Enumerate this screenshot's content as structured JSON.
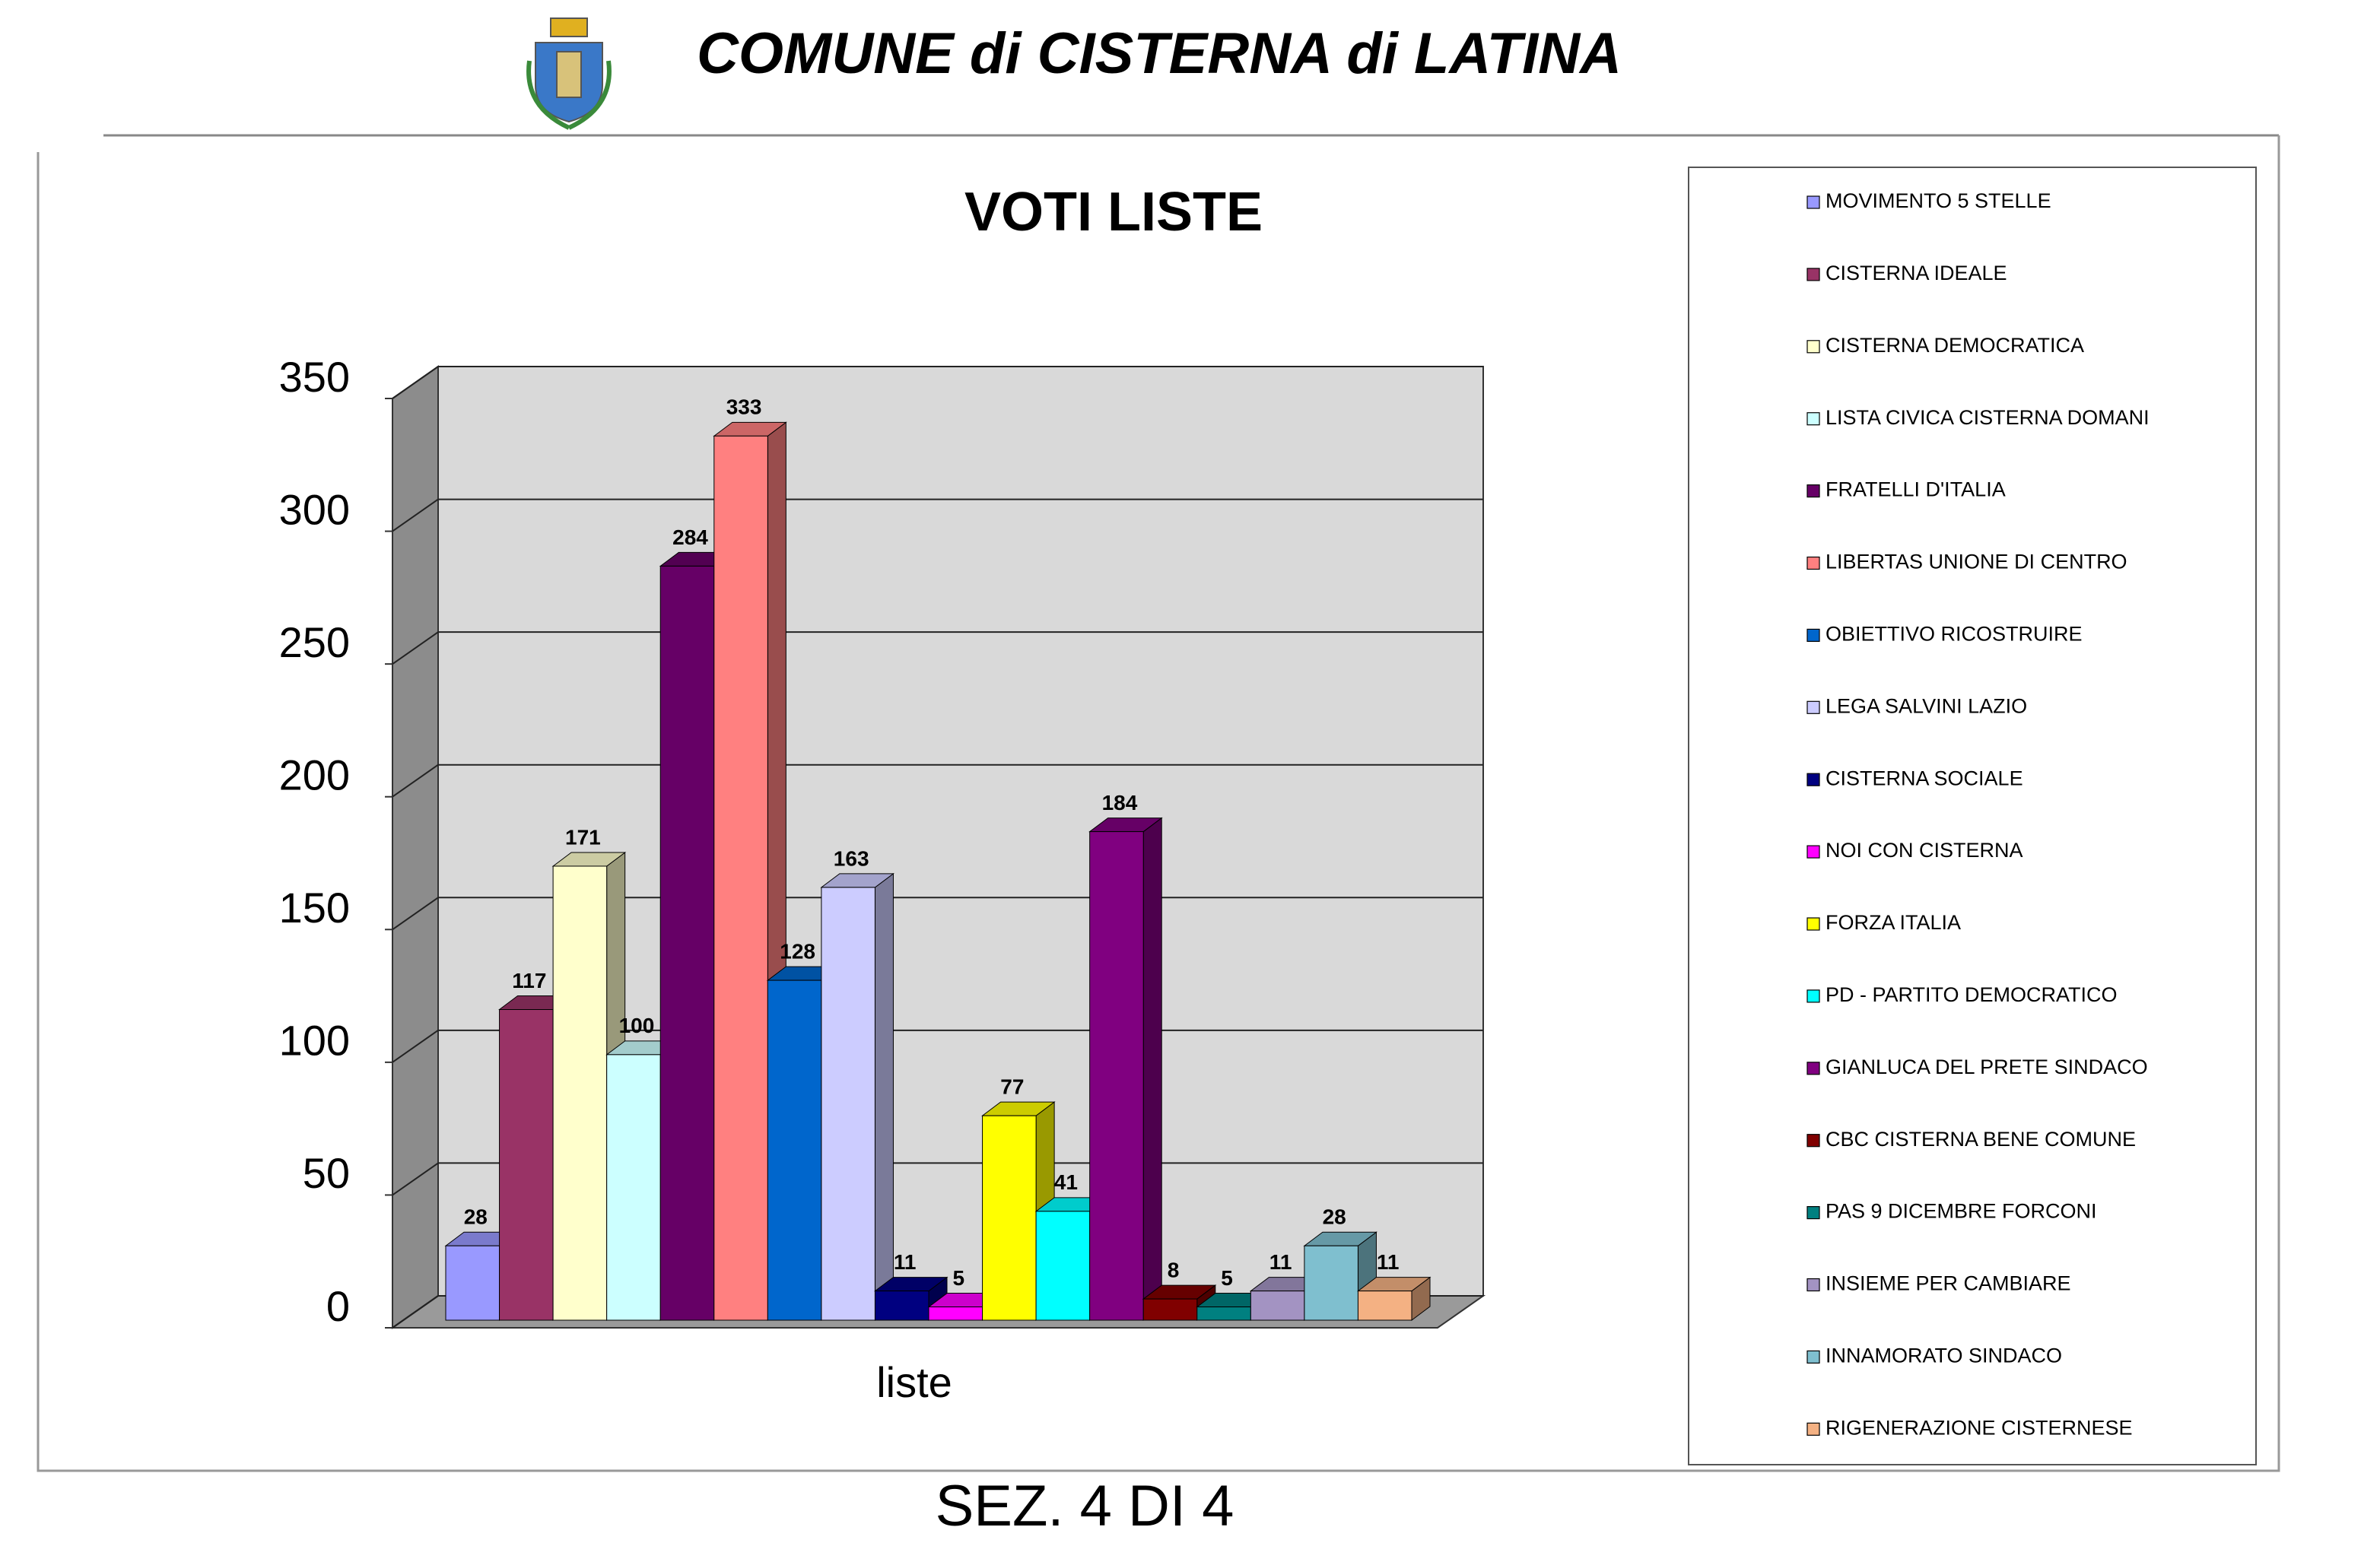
{
  "header": {
    "title": "COMUNE di CISTERNA di LATINA"
  },
  "footer": "SEZ. 4 DI 4",
  "chart_data": {
    "type": "bar3d",
    "title": "VOTI LISTE",
    "x_label": "liste",
    "categories": [
      "liste"
    ],
    "ylim": [
      0,
      350
    ],
    "yticks": [
      0,
      50,
      100,
      150,
      200,
      250,
      300,
      350
    ],
    "grid": true,
    "legend": "right",
    "series": [
      {
        "name": "MOVIMENTO 5 STELLE",
        "color": "#9999ff",
        "values": [
          28
        ]
      },
      {
        "name": "CISTERNA IDEALE",
        "color": "#993366",
        "values": [
          117
        ]
      },
      {
        "name": "CISTERNA DEMOCRATICA",
        "color": "#ffffcc",
        "values": [
          171
        ]
      },
      {
        "name": "LISTA CIVICA CISTERNA DOMANI",
        "color": "#ccffff",
        "values": [
          100
        ]
      },
      {
        "name": "FRATELLI D'ITALIA",
        "color": "#660066",
        "values": [
          284
        ]
      },
      {
        "name": "LIBERTAS UNIONE DI CENTRO",
        "color": "#ff8080",
        "values": [
          333
        ]
      },
      {
        "name": "OBIETTIVO RICOSTRUIRE",
        "color": "#0066cc",
        "values": [
          128
        ]
      },
      {
        "name": "LEGA SALVINI LAZIO",
        "color": "#ccccff",
        "values": [
          163
        ]
      },
      {
        "name": "CISTERNA SOCIALE",
        "color": "#000080",
        "values": [
          11
        ]
      },
      {
        "name": "NOI CON CISTERNA",
        "color": "#ff00ff",
        "values": [
          5
        ]
      },
      {
        "name": "FORZA ITALIA",
        "color": "#ffff00",
        "values": [
          77
        ]
      },
      {
        "name": "PD - PARTITO DEMOCRATICO",
        "color": "#00ffff",
        "values": [
          41
        ]
      },
      {
        "name": "GIANLUCA DEL PRETE SINDACO",
        "color": "#800080",
        "values": [
          184
        ]
      },
      {
        "name": "CBC CISTERNA BENE COMUNE",
        "color": "#800000",
        "values": [
          8
        ]
      },
      {
        "name": "PAS 9 DICEMBRE FORCONI",
        "color": "#008080",
        "values": [
          5
        ]
      },
      {
        "name": "INSIEME PER CAMBIARE",
        "color": "#a393c2",
        "values": [
          11
        ]
      },
      {
        "name": "INNAMORATO SINDACO",
        "color": "#7fbfcf",
        "values": [
          28
        ]
      },
      {
        "name": "RIGENERAZIONE CISTERNESE",
        "color": "#f4b183",
        "values": [
          11
        ]
      }
    ]
  }
}
